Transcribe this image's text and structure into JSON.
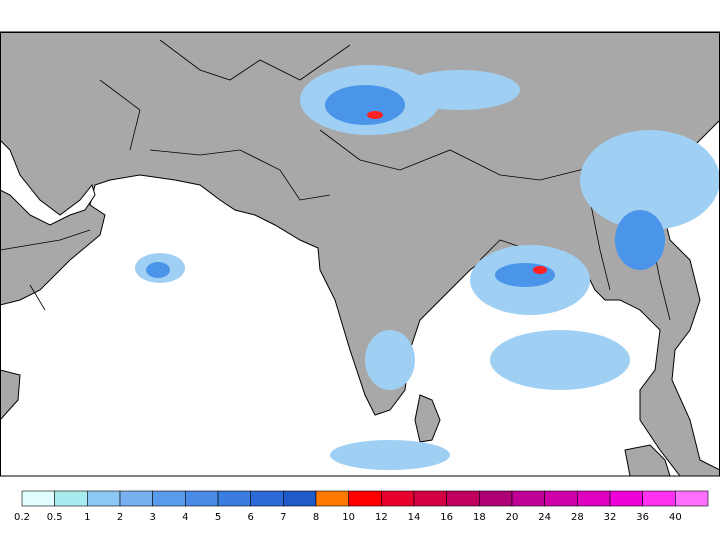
{
  "colorbar": {
    "labels": [
      "0.2",
      "0.5",
      "1",
      "2",
      "3",
      "4",
      "5",
      "6",
      "7",
      "8",
      "10",
      "12",
      "14",
      "16",
      "18",
      "20",
      "24",
      "28",
      "32",
      "36",
      "40"
    ],
    "colors": [
      "#e0fcfc",
      "#a8ecf0",
      "#8cc8f4",
      "#78b0f0",
      "#5a9cec",
      "#4a8ce8",
      "#3a7ce0",
      "#2c6ad8",
      "#1e5ac8",
      "#ff7800",
      "#ff0000",
      "#e8002c",
      "#d40044",
      "#c0005c",
      "#b00078",
      "#c00094",
      "#d000a8",
      "#e000c0",
      "#f000d8",
      "#ff30f0",
      "#ff70ff"
    ]
  }
}
